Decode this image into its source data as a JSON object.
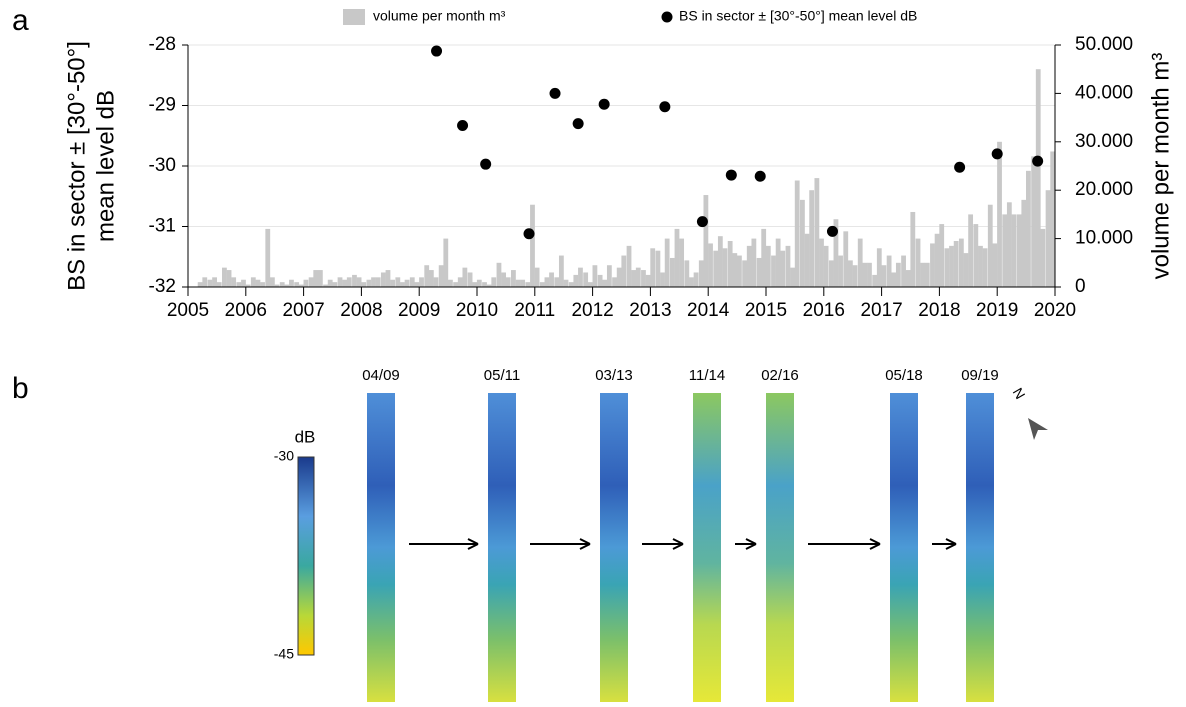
{
  "chart_data": {
    "type": "combo",
    "panel_label": "a",
    "ylabel": [
      "BS in sector ± [30°-50°]",
      "mean level dB"
    ],
    "y2label": "volume per month m³",
    "xlim": [
      2005,
      2020
    ],
    "xticks": [
      2005,
      2006,
      2007,
      2008,
      2009,
      2010,
      2011,
      2012,
      2013,
      2014,
      2015,
      2016,
      2017,
      2018,
      2019,
      2020
    ],
    "ylim": [
      -32,
      -28
    ],
    "yticks": [
      -32,
      -31,
      -30,
      -29,
      -28
    ],
    "y2lim": [
      0,
      50000
    ],
    "y2ticks": [
      0,
      {
        "value": 10000,
        "label": "10.000"
      },
      {
        "value": 20000,
        "label": "20.000"
      },
      {
        "value": 30000,
        "label": "30.000"
      },
      {
        "value": 40000,
        "label": "40.000"
      },
      {
        "value": 50000,
        "label": "50.000"
      }
    ],
    "grid": true,
    "legend": "top",
    "series": [
      {
        "name": "volume per month m³",
        "type": "bar",
        "axis": "y2",
        "color": "#c8c8c8",
        "x": [
          2005.04,
          2005.13,
          2005.21,
          2005.29,
          2005.38,
          2005.46,
          2005.54,
          2005.63,
          2005.71,
          2005.79,
          2005.88,
          2005.96,
          2006.04,
          2006.13,
          2006.21,
          2006.29,
          2006.38,
          2006.46,
          2006.54,
          2006.63,
          2006.71,
          2006.79,
          2006.88,
          2006.96,
          2007.04,
          2007.13,
          2007.21,
          2007.29,
          2007.38,
          2007.46,
          2007.54,
          2007.63,
          2007.71,
          2007.79,
          2007.88,
          2007.96,
          2008.04,
          2008.13,
          2008.21,
          2008.29,
          2008.38,
          2008.46,
          2008.54,
          2008.63,
          2008.71,
          2008.79,
          2008.88,
          2008.96,
          2009.04,
          2009.13,
          2009.21,
          2009.29,
          2009.38,
          2009.46,
          2009.54,
          2009.63,
          2009.71,
          2009.79,
          2009.88,
          2009.96,
          2010.04,
          2010.13,
          2010.21,
          2010.29,
          2010.38,
          2010.46,
          2010.54,
          2010.63,
          2010.71,
          2010.79,
          2010.88,
          2010.96,
          2011.04,
          2011.13,
          2011.21,
          2011.29,
          2011.38,
          2011.46,
          2011.54,
          2011.63,
          2011.71,
          2011.79,
          2011.88,
          2011.96,
          2012.04,
          2012.13,
          2012.21,
          2012.29,
          2012.38,
          2012.46,
          2012.54,
          2012.63,
          2012.71,
          2012.79,
          2012.88,
          2012.96,
          2013.04,
          2013.13,
          2013.21,
          2013.29,
          2013.38,
          2013.46,
          2013.54,
          2013.63,
          2013.71,
          2013.79,
          2013.88,
          2013.96,
          2014.04,
          2014.13,
          2014.21,
          2014.29,
          2014.38,
          2014.46,
          2014.54,
          2014.63,
          2014.71,
          2014.79,
          2014.88,
          2014.96,
          2015.04,
          2015.13,
          2015.21,
          2015.29,
          2015.38,
          2015.46,
          2015.54,
          2015.63,
          2015.71,
          2015.79,
          2015.88,
          2015.96,
          2016.04,
          2016.13,
          2016.21,
          2016.29,
          2016.38,
          2016.46,
          2016.54,
          2016.63,
          2016.71,
          2016.79,
          2016.88,
          2016.96,
          2017.04,
          2017.13,
          2017.21,
          2017.29,
          2017.38,
          2017.46,
          2017.54,
          2017.63,
          2017.71,
          2017.79,
          2017.88,
          2017.96,
          2018.04,
          2018.13,
          2018.21,
          2018.29,
          2018.38,
          2018.46,
          2018.54,
          2018.63,
          2018.71,
          2018.79,
          2018.88,
          2018.96,
          2019.04,
          2019.13,
          2019.21,
          2019.29,
          2019.38,
          2019.46,
          2019.54,
          2019.63,
          2019.71,
          2019.79,
          2019.88,
          2019.96
        ],
        "values": [
          0,
          0,
          1000,
          2000,
          1500,
          2000,
          1000,
          4000,
          3500,
          2000,
          1000,
          1500,
          500,
          2000,
          1500,
          1000,
          12000,
          2000,
          500,
          1000,
          500,
          1500,
          1000,
          500,
          1500,
          2000,
          3500,
          3500,
          500,
          1500,
          1000,
          2000,
          1500,
          2000,
          2500,
          2000,
          1000,
          1500,
          2000,
          2000,
          3000,
          3500,
          1500,
          2000,
          1000,
          1500,
          2000,
          1000,
          2000,
          4500,
          3500,
          2000,
          4500,
          10000,
          1500,
          1000,
          2000,
          4000,
          3000,
          1000,
          1500,
          1000,
          500,
          2000,
          5000,
          3000,
          2000,
          3500,
          1500,
          1500,
          1000,
          17000,
          4000,
          1000,
          2000,
          3000,
          2000,
          6500,
          1500,
          1000,
          2500,
          4000,
          3000,
          1000,
          4500,
          2500,
          1500,
          4500,
          2000,
          4000,
          6500,
          8500,
          3500,
          4000,
          3500,
          2500,
          8000,
          7500,
          3000,
          10000,
          6000,
          12000,
          10000,
          5500,
          2000,
          3000,
          5500,
          19000,
          9000,
          7500,
          10500,
          8000,
          9500,
          7000,
          6500,
          5500,
          8500,
          10000,
          6000,
          12000,
          8500,
          6500,
          10000,
          7500,
          8500,
          4000,
          22000,
          18000,
          11000,
          20000,
          22500,
          10000,
          8500,
          5500,
          14000,
          6500,
          11500,
          5500,
          4500,
          10000,
          5000,
          5000,
          2500,
          8000,
          4500,
          6500,
          3000,
          5000,
          6500,
          3500,
          15500,
          10000,
          5000,
          5000,
          9000,
          11000,
          13000,
          8000,
          8500,
          9500,
          10000,
          7000,
          15000,
          13000,
          8500,
          8000,
          17000,
          9000,
          30000,
          15000,
          17500,
          15000,
          15000,
          18000,
          24000,
          27000,
          45000,
          12000,
          20000,
          28000
        ]
      },
      {
        "name": "BS in sector ± [30°-50°] mean level dB",
        "type": "scatter",
        "color": "#000000",
        "x": [
          2009.3,
          2009.75,
          2010.15,
          2010.9,
          2011.35,
          2011.75,
          2012.2,
          2013.25,
          2013.9,
          2014.4,
          2014.9,
          2016.15,
          2018.35,
          2019.0,
          2019.7
        ],
        "values": [
          -28.1,
          -29.33,
          -29.97,
          -31.12,
          -28.8,
          -29.3,
          -28.98,
          -29.02,
          -30.92,
          -30.15,
          -30.17,
          -31.08,
          -30.02,
          -29.8,
          -29.92
        ]
      }
    ]
  },
  "panel_b": {
    "label": "b",
    "dates": [
      "04/09",
      "05/11",
      "03/13",
      "11/14",
      "02/16",
      "05/18",
      "09/19"
    ],
    "colorbar": {
      "title": "dB",
      "top": -30,
      "bottom": -45
    },
    "north": "N"
  }
}
